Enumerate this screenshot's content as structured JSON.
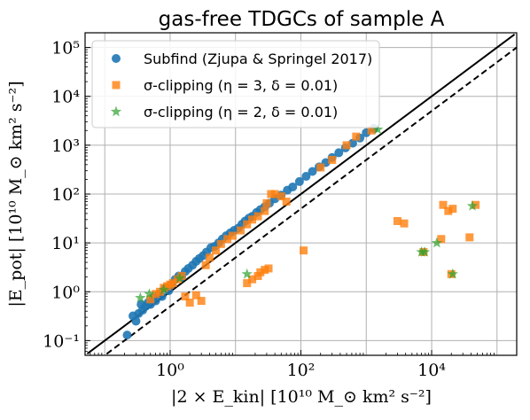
{
  "chart_data": {
    "type": "scatter",
    "title": "gas-free TDGCs of sample A",
    "xlabel": "|2 × E_kin| [10¹⁰ M_⊙ km² s⁻²]",
    "ylabel": "|E_pot| [10¹⁰ M_⊙ km² s⁻²]",
    "xscale": "log",
    "yscale": "log",
    "xlim": [
      0.05,
      200000
    ],
    "ylim": [
      0.05,
      200000
    ],
    "grid": true,
    "legend_position": "top-left",
    "x_ticks": [
      {
        "value": 1,
        "label": "10⁰"
      },
      {
        "value": 100,
        "label": "10²"
      },
      {
        "value": 10000,
        "label": "10⁴"
      }
    ],
    "y_ticks": [
      {
        "value": 0.1,
        "label": "10⁻¹"
      },
      {
        "value": 1,
        "label": "10⁰"
      },
      {
        "value": 10,
        "label": "10¹"
      },
      {
        "value": 100,
        "label": "10²"
      },
      {
        "value": 1000,
        "label": "10³"
      },
      {
        "value": 10000,
        "label": "10⁴"
      },
      {
        "value": 100000,
        "label": "10⁵"
      }
    ],
    "reference_lines": [
      {
        "slope": 1,
        "style": "solid",
        "color": "#000000"
      },
      {
        "slope": 0.5,
        "style": "dashed",
        "color": "#000000"
      }
    ],
    "series": [
      {
        "name": "Subfind (Zjupa & Springel 2017)",
        "marker": "circle",
        "color": "#1f77b4",
        "points": [
          [
            0.22,
            0.13
          ],
          [
            0.27,
            0.32
          ],
          [
            0.3,
            0.25
          ],
          [
            0.33,
            0.36
          ],
          [
            0.36,
            0.55
          ],
          [
            0.38,
            0.42
          ],
          [
            0.42,
            0.5
          ],
          [
            0.46,
            0.6
          ],
          [
            0.5,
            0.55
          ],
          [
            0.55,
            0.75
          ],
          [
            0.6,
            0.65
          ],
          [
            0.68,
            0.9
          ],
          [
            0.75,
            0.8
          ],
          [
            0.85,
            1.2
          ],
          [
            0.95,
            1.05
          ],
          [
            1.05,
            1.4
          ],
          [
            1.2,
            1.8
          ],
          [
            1.35,
            2.1
          ],
          [
            1.5,
            2.0
          ],
          [
            1.7,
            2.6
          ],
          [
            1.9,
            3.0
          ],
          [
            2.2,
            3.5
          ],
          [
            2.5,
            4.2
          ],
          [
            2.8,
            4.8
          ],
          [
            3.2,
            5.5
          ],
          [
            3.6,
            6.5
          ],
          [
            4.2,
            8.0
          ],
          [
            4.8,
            8.5
          ],
          [
            5.5,
            10
          ],
          [
            6.3,
            12
          ],
          [
            7.2,
            14
          ],
          [
            8.3,
            16
          ],
          [
            9.5,
            18
          ],
          [
            11,
            20
          ],
          [
            12.5,
            24
          ],
          [
            14,
            28
          ],
          [
            16,
            32
          ],
          [
            18,
            35
          ],
          [
            21,
            42
          ],
          [
            24,
            48
          ],
          [
            28,
            55
          ],
          [
            33,
            65
          ],
          [
            40,
            80
          ],
          [
            50,
            95
          ],
          [
            62,
            120
          ],
          [
            75,
            140
          ],
          [
            95,
            180
          ],
          [
            120,
            230
          ],
          [
            150,
            290
          ],
          [
            190,
            360
          ],
          [
            240,
            440
          ],
          [
            300,
            560
          ],
          [
            380,
            700
          ],
          [
            480,
            880
          ],
          [
            620,
            1100
          ],
          [
            800,
            1400
          ],
          [
            1000,
            1800
          ],
          [
            1300,
            2200
          ]
        ]
      },
      {
        "name": "σ-clipping (η = 3, δ = 0.01)",
        "marker": "square",
        "color": "#ff7f0e",
        "points": [
          [
            0.5,
            0.7
          ],
          [
            0.6,
            0.9
          ],
          [
            0.7,
            1.0
          ],
          [
            0.8,
            1.2
          ],
          [
            0.9,
            1.3
          ],
          [
            1.0,
            1.4
          ],
          [
            1.1,
            1.5
          ],
          [
            1.3,
            1.8
          ],
          [
            1.5,
            2.1
          ],
          [
            1.7,
            0.8
          ],
          [
            2.0,
            0.6
          ],
          [
            2.5,
            0.85
          ],
          [
            3.0,
            0.65
          ],
          [
            3.5,
            3.5
          ],
          [
            4.0,
            5.0
          ],
          [
            5.0,
            7.0
          ],
          [
            6.0,
            9.5
          ],
          [
            7.5,
            12
          ],
          [
            9.0,
            14
          ],
          [
            12,
            18
          ],
          [
            15,
            24
          ],
          [
            18,
            30
          ],
          [
            22,
            35
          ],
          [
            28,
            45
          ],
          [
            30,
            65
          ],
          [
            35,
            100
          ],
          [
            40,
            100
          ],
          [
            50,
            90
          ],
          [
            60,
            70
          ],
          [
            15,
            1.5
          ],
          [
            18,
            1.8
          ],
          [
            22,
            2.1
          ],
          [
            24,
            2.5
          ],
          [
            28,
            2.8
          ],
          [
            32,
            3.0
          ],
          [
            110,
            7.0
          ],
          [
            200,
            350
          ],
          [
            300,
            500
          ],
          [
            500,
            1000
          ],
          [
            700,
            1500
          ],
          [
            1200,
            2000
          ],
          [
            3000,
            28
          ],
          [
            3800,
            25
          ],
          [
            7500,
            6.5
          ],
          [
            14000,
            12
          ],
          [
            15000,
            60
          ],
          [
            18000,
            45
          ],
          [
            20000,
            2.3
          ],
          [
            21000,
            50
          ],
          [
            38000,
            13
          ],
          [
            47000,
            60
          ]
        ]
      },
      {
        "name": "σ-clipping (η = 2, δ = 0.01)",
        "marker": "star",
        "color": "#2ca02c",
        "points": [
          [
            0.35,
            0.75
          ],
          [
            0.48,
            0.9
          ],
          [
            0.8,
            1.1
          ],
          [
            1.4,
            1.9
          ],
          [
            15,
            2.3
          ],
          [
            7000,
            6.5
          ],
          [
            7800,
            6.5
          ],
          [
            12000,
            10
          ],
          [
            21000,
            2.3
          ],
          [
            42000,
            57
          ],
          [
            1500,
            2100
          ]
        ]
      }
    ]
  }
}
